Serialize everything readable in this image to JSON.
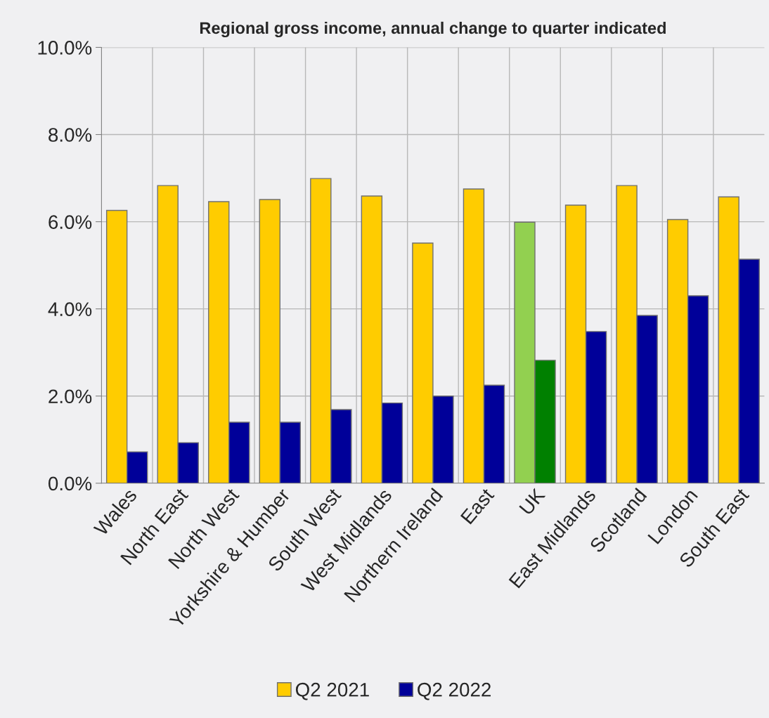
{
  "chart_data": {
    "type": "bar",
    "title": "Regional gross income, annual change to quarter indicated",
    "categories": [
      "Wales",
      "North East",
      "North West",
      "Yorkshire & Humber",
      "South West",
      "West Midlands",
      "Northern Ireland",
      "East",
      "UK",
      "East Midlands",
      "Scotland",
      "London",
      "South East"
    ],
    "series": [
      {
        "name": "Q2 2021",
        "color": "#ffcc00",
        "colors": [
          "#ffcc00",
          "#ffcc00",
          "#ffcc00",
          "#ffcc00",
          "#ffcc00",
          "#ffcc00",
          "#ffcc00",
          "#ffcc00",
          "#92d050",
          "#ffcc00",
          "#ffcc00",
          "#ffcc00",
          "#ffcc00"
        ],
        "values": [
          6.26,
          6.83,
          6.46,
          6.51,
          6.99,
          6.59,
          5.51,
          6.75,
          5.99,
          6.38,
          6.83,
          6.05,
          6.57
        ]
      },
      {
        "name": "Q2 2022",
        "color": "#000099",
        "colors": [
          "#000099",
          "#000099",
          "#000099",
          "#000099",
          "#000099",
          "#000099",
          "#000099",
          "#000099",
          "#008000",
          "#000099",
          "#000099",
          "#000099",
          "#000099"
        ],
        "values": [
          0.72,
          0.93,
          1.4,
          1.4,
          1.69,
          1.84,
          2.0,
          2.25,
          2.82,
          3.48,
          3.85,
          4.3,
          5.14
        ]
      }
    ],
    "ylim": [
      0,
      10
    ],
    "yticks": [
      {
        "value": 0,
        "label": "0.0%"
      },
      {
        "value": 2,
        "label": "2.0%"
      },
      {
        "value": 4,
        "label": "4.0%"
      },
      {
        "value": 6,
        "label": "6.0%"
      },
      {
        "value": 8,
        "label": "8.0%"
      },
      {
        "value": 10,
        "label": "10.0%"
      }
    ],
    "grid": true,
    "legend": "bottom"
  }
}
